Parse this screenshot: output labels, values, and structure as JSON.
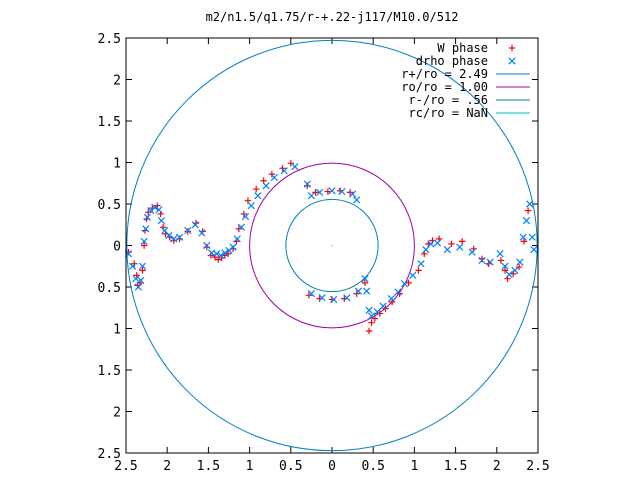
{
  "chart_data": {
    "type": "scatter",
    "title": "m2/n1.5/q1.75/r-+.22-j117/M10.0/512",
    "xlim": [
      -2.5,
      2.5
    ],
    "ylim": [
      -2.5,
      2.5
    ],
    "xticks": [
      -2.5,
      -2,
      -1.5,
      -1,
      -0.5,
      0,
      0.5,
      1,
      1.5,
      2,
      2.5
    ],
    "yticks": [
      -2.5,
      -2,
      -1.5,
      -1,
      -0.5,
      0,
      0.5,
      1,
      1.5,
      2,
      2.5
    ],
    "xtick_labels": [
      "2.5",
      "2",
      "1.5",
      "1",
      "0.5",
      "0",
      "0.5",
      "1",
      "1.5",
      "2",
      "2.5"
    ],
    "ytick_labels": [
      "2.5",
      "2",
      "1.5",
      "1",
      "0.5",
      "0",
      "0.5",
      "1",
      "1.5",
      "2",
      "2.5"
    ],
    "grid": false,
    "legend_position": "top-right",
    "series": [
      {
        "name": "W phase",
        "marker": "+",
        "color": "#ff0000",
        "points": [
          [
            -2.47,
            -0.08
          ],
          [
            -2.4,
            -0.22
          ],
          [
            -2.37,
            -0.36
          ],
          [
            -2.36,
            -0.48
          ],
          [
            -2.33,
            -0.45
          ],
          [
            -2.3,
            -0.3
          ],
          [
            -2.28,
            0.0
          ],
          [
            -2.27,
            0.18
          ],
          [
            -2.25,
            0.32
          ],
          [
            -2.23,
            0.4
          ],
          [
            -2.18,
            0.45
          ],
          [
            -2.12,
            0.48
          ],
          [
            -2.08,
            0.38
          ],
          [
            -2.05,
            0.22
          ],
          [
            -2.02,
            0.14
          ],
          [
            -1.97,
            0.1
          ],
          [
            -1.92,
            0.06
          ],
          [
            -1.85,
            0.08
          ],
          [
            -1.75,
            0.17
          ],
          [
            -1.65,
            0.27
          ],
          [
            -1.57,
            0.17
          ],
          [
            -1.52,
            -0.02
          ],
          [
            -1.47,
            -0.12
          ],
          [
            -1.42,
            -0.14
          ],
          [
            -1.38,
            -0.17
          ],
          [
            -1.34,
            -0.15
          ],
          [
            -1.3,
            -0.12
          ],
          [
            -1.26,
            -0.1
          ],
          [
            -1.2,
            -0.04
          ],
          [
            -1.16,
            0.05
          ],
          [
            -1.13,
            0.2
          ],
          [
            -1.07,
            0.38
          ],
          [
            -1.02,
            0.54
          ],
          [
            -0.92,
            0.68
          ],
          [
            -0.83,
            0.78
          ],
          [
            -0.73,
            0.86
          ],
          [
            -0.6,
            0.93
          ],
          [
            -0.5,
            0.99
          ],
          [
            -0.3,
            0.72
          ],
          [
            -0.2,
            0.64
          ],
          [
            -0.05,
            0.65
          ],
          [
            0.1,
            0.66
          ],
          [
            0.22,
            0.64
          ],
          [
            0.45,
            -1.03
          ],
          [
            0.48,
            -0.93
          ],
          [
            0.52,
            -0.88
          ],
          [
            0.58,
            -0.82
          ],
          [
            0.65,
            -0.76
          ],
          [
            0.73,
            -0.68
          ],
          [
            0.82,
            -0.58
          ],
          [
            0.93,
            -0.45
          ],
          [
            1.05,
            -0.3
          ],
          [
            1.12,
            -0.1
          ],
          [
            1.17,
            0.02
          ],
          [
            1.22,
            0.06
          ],
          [
            1.3,
            0.08
          ],
          [
            1.45,
            0.02
          ],
          [
            1.58,
            0.05
          ],
          [
            1.72,
            -0.04
          ],
          [
            1.82,
            -0.16
          ],
          [
            1.9,
            -0.22
          ],
          [
            2.05,
            -0.18
          ],
          [
            2.1,
            -0.3
          ],
          [
            2.13,
            -0.4
          ],
          [
            2.2,
            -0.34
          ],
          [
            2.27,
            -0.26
          ],
          [
            2.33,
            0.05
          ],
          [
            2.38,
            0.42
          ],
          [
            -0.28,
            -0.6
          ],
          [
            -0.15,
            -0.64
          ],
          [
            0.0,
            -0.65
          ],
          [
            0.15,
            -0.64
          ],
          [
            0.3,
            -0.58
          ],
          [
            0.4,
            -0.45
          ]
        ]
      },
      {
        "name": "drho phase",
        "marker": "x",
        "color": "#0080ff",
        "points": [
          [
            -2.47,
            -0.1
          ],
          [
            -2.42,
            -0.25
          ],
          [
            -2.38,
            -0.4
          ],
          [
            -2.35,
            -0.5
          ],
          [
            -2.32,
            -0.42
          ],
          [
            -2.3,
            -0.25
          ],
          [
            -2.28,
            0.05
          ],
          [
            -2.26,
            0.2
          ],
          [
            -2.24,
            0.34
          ],
          [
            -2.2,
            0.42
          ],
          [
            -2.15,
            0.46
          ],
          [
            -2.1,
            0.43
          ],
          [
            -2.07,
            0.3
          ],
          [
            -2.03,
            0.18
          ],
          [
            -1.98,
            0.12
          ],
          [
            -1.92,
            0.08
          ],
          [
            -1.85,
            0.1
          ],
          [
            -1.75,
            0.18
          ],
          [
            -1.66,
            0.25
          ],
          [
            -1.58,
            0.15
          ],
          [
            -1.52,
            0.0
          ],
          [
            -1.46,
            -0.09
          ],
          [
            -1.4,
            -0.1
          ],
          [
            -1.35,
            -0.12
          ],
          [
            -1.3,
            -0.09
          ],
          [
            -1.25,
            -0.06
          ],
          [
            -1.2,
            -0.02
          ],
          [
            -1.15,
            0.08
          ],
          [
            -1.1,
            0.22
          ],
          [
            -1.05,
            0.35
          ],
          [
            -0.98,
            0.48
          ],
          [
            -0.9,
            0.6
          ],
          [
            -0.8,
            0.72
          ],
          [
            -0.7,
            0.82
          ],
          [
            -0.58,
            0.9
          ],
          [
            -0.45,
            0.95
          ],
          [
            -0.3,
            0.74
          ],
          [
            -0.25,
            0.6
          ],
          [
            -0.15,
            0.64
          ],
          [
            0.0,
            0.66
          ],
          [
            0.12,
            0.65
          ],
          [
            0.25,
            0.62
          ],
          [
            0.3,
            0.55
          ],
          [
            0.4,
            -0.4
          ],
          [
            0.42,
            -0.55
          ],
          [
            0.45,
            -0.78
          ],
          [
            0.48,
            -0.85
          ],
          [
            0.55,
            -0.8
          ],
          [
            0.62,
            -0.73
          ],
          [
            0.72,
            -0.64
          ],
          [
            0.8,
            -0.56
          ],
          [
            0.88,
            -0.46
          ],
          [
            0.98,
            -0.36
          ],
          [
            1.08,
            -0.22
          ],
          [
            1.14,
            -0.05
          ],
          [
            1.2,
            0.02
          ],
          [
            1.28,
            0.03
          ],
          [
            1.4,
            -0.05
          ],
          [
            1.55,
            -0.02
          ],
          [
            1.7,
            -0.08
          ],
          [
            1.82,
            -0.18
          ],
          [
            1.92,
            -0.2
          ],
          [
            2.04,
            -0.1
          ],
          [
            2.1,
            -0.25
          ],
          [
            2.15,
            -0.35
          ],
          [
            2.22,
            -0.3
          ],
          [
            2.28,
            -0.2
          ],
          [
            2.32,
            0.1
          ],
          [
            2.36,
            0.3
          ],
          [
            2.4,
            0.5
          ],
          [
            2.43,
            0.1
          ],
          [
            2.45,
            -0.05
          ],
          [
            -0.25,
            -0.58
          ],
          [
            -0.12,
            -0.63
          ],
          [
            0.02,
            -0.65
          ],
          [
            0.18,
            -0.63
          ],
          [
            0.32,
            -0.55
          ]
        ]
      }
    ],
    "circles": [
      {
        "name": "r+/ro = 2.49",
        "radius": 2.49,
        "color": "#0080c0"
      },
      {
        "name": "ro/ro = 1.00",
        "radius": 1.0,
        "color": "#a000a0"
      },
      {
        "name": "r-/ro = .56",
        "radius": 0.56,
        "color": "#0080c0"
      },
      {
        "name": "rc/ro = NaN",
        "radius": null,
        "color": "#00c0c0"
      }
    ]
  }
}
